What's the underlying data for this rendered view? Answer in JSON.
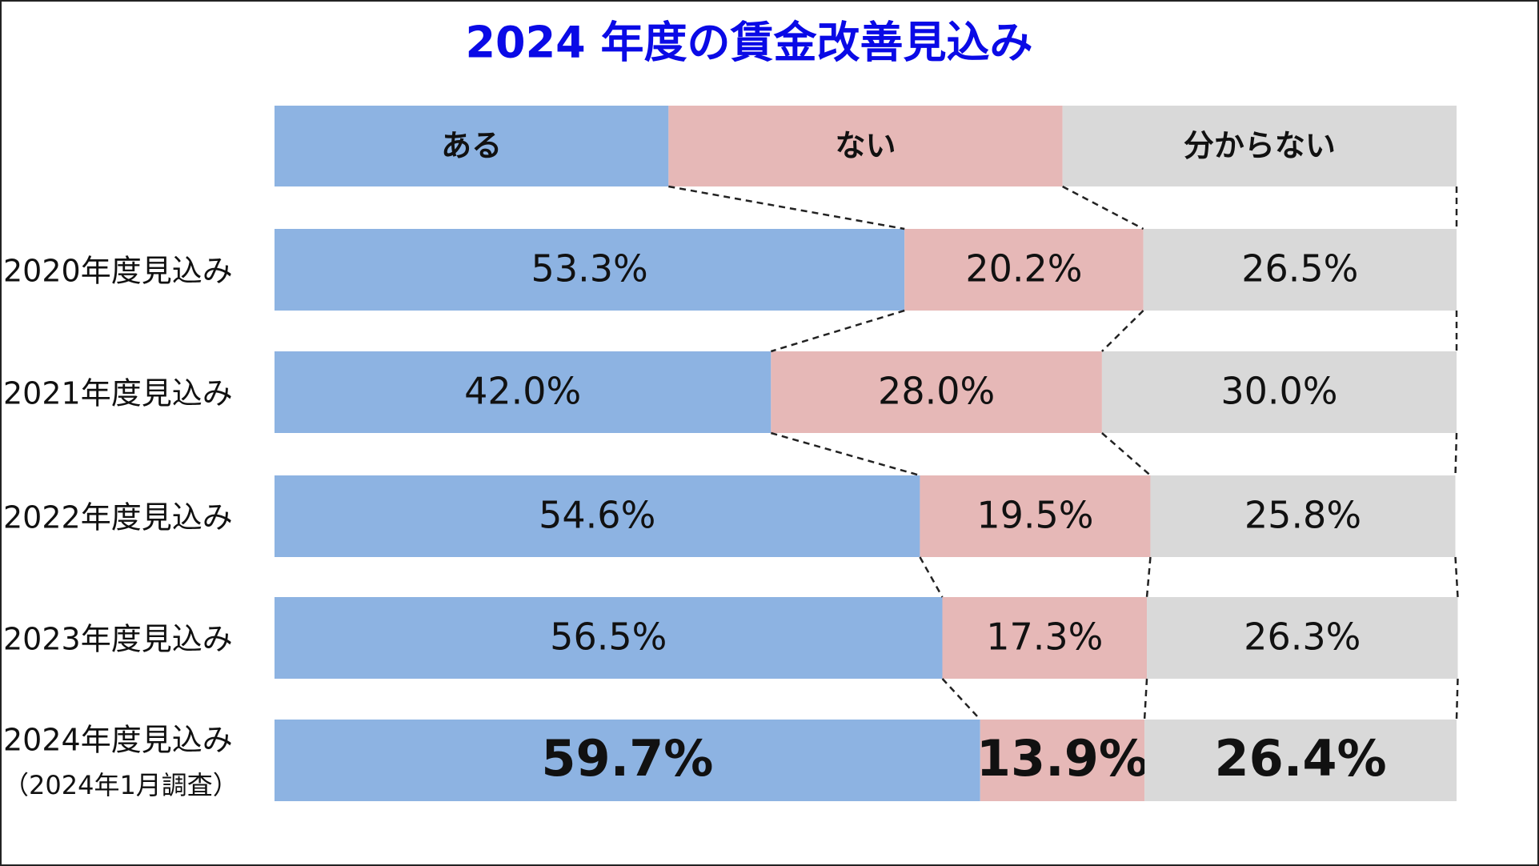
{
  "chart_data": {
    "type": "stacked-bar-100",
    "title": "2024 年度の賃金改善見込み",
    "categories": [
      "2020年度見込み",
      "2021年度見込み",
      "2022年度見込み",
      "2023年度見込み",
      "2024年度見込み"
    ],
    "category_sublabels": [
      null,
      null,
      null,
      null,
      "（2024年1月調査）"
    ],
    "xlim": [
      0,
      100
    ],
    "series": [
      {
        "name": "ある",
        "color": "#8db3e2",
        "values": [
          53.3,
          42.0,
          54.6,
          56.5,
          59.7
        ],
        "value_labels": [
          "53.3%",
          "42.0%",
          "54.6%",
          "56.5%",
          "59.7%"
        ]
      },
      {
        "name": "ない",
        "color": "#e6b8b7",
        "values": [
          20.2,
          28.0,
          19.5,
          17.3,
          13.9
        ],
        "value_labels": [
          "20.2%",
          "28.0%",
          "19.5%",
          "17.3%",
          "13.9%"
        ]
      },
      {
        "name": "分からない",
        "color": "#d9d9d9",
        "values": [
          26.5,
          30.0,
          25.8,
          26.3,
          26.4
        ],
        "value_labels": [
          "26.5%",
          "30.0%",
          "25.8%",
          "26.3%",
          "26.4%"
        ]
      }
    ]
  }
}
